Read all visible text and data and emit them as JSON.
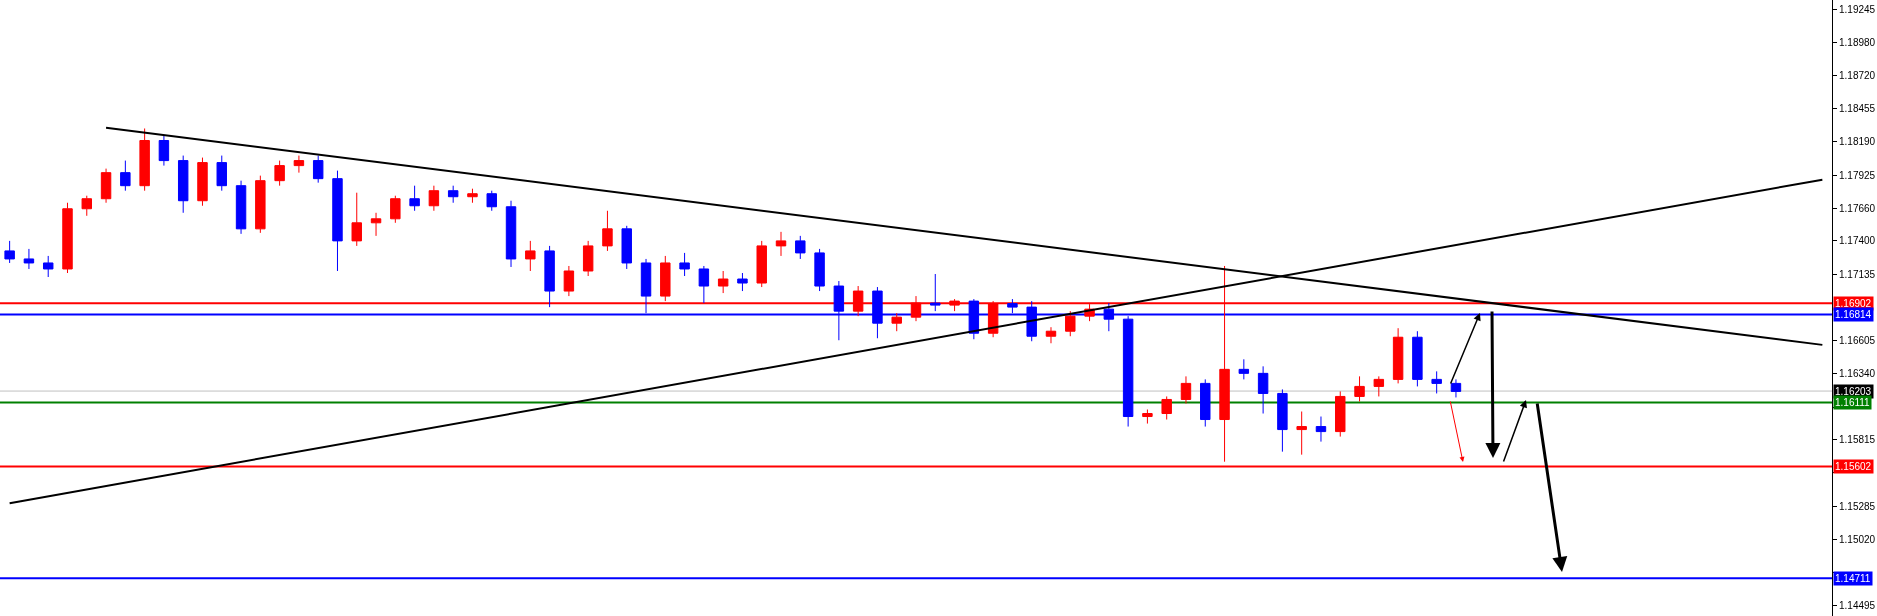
{
  "chart_data": {
    "type": "candlestick",
    "tick_labels": "y",
    "categories": [
      null,
      null,
      null,
      null,
      null,
      null,
      null,
      null,
      null,
      null,
      null,
      null,
      null,
      null,
      null,
      null,
      null,
      null,
      null,
      null,
      null,
      null,
      null,
      null,
      null,
      null,
      null,
      null,
      null,
      null,
      null,
      null,
      null,
      null,
      null,
      null,
      null,
      null,
      null,
      null,
      null,
      null,
      null,
      null,
      null,
      null,
      null,
      null,
      null,
      null,
      null,
      null,
      null,
      null,
      null,
      null,
      null,
      null,
      null,
      null,
      null,
      null,
      null,
      null,
      null,
      null,
      null,
      null,
      null,
      null,
      null,
      null,
      null,
      null,
      null,
      null,
      null,
      null,
      null,
      null,
      null,
      null,
      null,
      null,
      null,
      null,
      null,
      null,
      null,
      null,
      null,
      null,
      null,
      null,
      null
    ],
    "ohlc": [
      [
        1.1732,
        1.174,
        1.17224,
        1.17256
      ],
      [
        1.17256,
        1.17336,
        1.17176,
        1.17224
      ],
      [
        1.17224,
        1.1728,
        1.17112,
        1.17176
      ],
      [
        1.17176,
        1.17704,
        1.17144,
        1.17656
      ],
      [
        1.17656,
        1.1776,
        1.176,
        1.17736
      ],
      [
        1.17736,
        1.17976,
        1.17704,
        1.17944
      ],
      [
        1.17944,
        1.1804,
        1.178,
        1.1784
      ],
      [
        1.1784,
        1.18296,
        1.178,
        1.182
      ],
      [
        1.182,
        1.1824,
        1.18,
        1.1804
      ],
      [
        1.1804,
        1.1808,
        1.17624,
        1.1772
      ],
      [
        1.1772,
        1.18064,
        1.1768,
        1.18024
      ],
      [
        1.18024,
        1.1808,
        1.178,
        1.1784
      ],
      [
        1.1784,
        1.1788,
        1.17456,
        1.17496
      ],
      [
        1.17496,
        1.1792,
        1.17464,
        1.1788
      ],
      [
        1.1788,
        1.1804,
        1.1784,
        1.18
      ],
      [
        1.18,
        1.1808,
        1.17944,
        1.1804
      ],
      [
        1.1804,
        1.1808,
        1.17864,
        1.17896
      ],
      [
        1.17896,
        1.1796,
        1.1716,
        1.174
      ],
      [
        1.174,
        1.17784,
        1.1736,
        1.17544
      ],
      [
        1.17544,
        1.17624,
        1.1744,
        1.17576
      ],
      [
        1.17576,
        1.1776,
        1.17544,
        1.17736
      ],
      [
        1.17736,
        1.1784,
        1.1764,
        1.1768
      ],
      [
        1.1768,
        1.1784,
        1.1764,
        1.178
      ],
      [
        1.178,
        1.1784,
        1.17704,
        1.17752
      ],
      [
        1.17752,
        1.17816,
        1.17704,
        1.17776
      ],
      [
        1.17776,
        1.178,
        1.1764,
        1.17672
      ],
      [
        1.17672,
        1.1772,
        1.17192,
        1.17256
      ],
      [
        1.17256,
        1.174,
        1.1716,
        1.1732
      ],
      [
        1.1732,
        1.1736,
        1.16872,
        1.17
      ],
      [
        1.17,
        1.172,
        1.1696,
        1.1716
      ],
      [
        1.1716,
        1.174,
        1.1712,
        1.1736
      ],
      [
        1.1736,
        1.1764,
        1.1732,
        1.17496
      ],
      [
        1.17496,
        1.1752,
        1.17176,
        1.17224
      ],
      [
        1.17224,
        1.17256,
        1.16824,
        1.1696
      ],
      [
        1.1696,
        1.1728,
        1.1692,
        1.17224
      ],
      [
        1.17224,
        1.17304,
        1.1712,
        1.17176
      ],
      [
        1.17176,
        1.172,
        1.16904,
        1.1704
      ],
      [
        1.1704,
        1.1716,
        1.16984,
        1.17096
      ],
      [
        1.17096,
        1.17144,
        1.17,
        1.17064
      ],
      [
        1.17064,
        1.174,
        1.17032,
        1.1736
      ],
      [
        1.1736,
        1.17472,
        1.1728,
        1.174
      ],
      [
        1.174,
        1.1744,
        1.17256,
        1.17304
      ],
      [
        1.17304,
        1.17336,
        1.17,
        1.1704
      ],
      [
        1.1704,
        1.1708,
        1.16608,
        1.1684
      ],
      [
        1.1684,
        1.1704,
        1.168,
        1.17
      ],
      [
        1.17,
        1.17032,
        1.16624,
        1.16744
      ],
      [
        1.16744,
        1.16824,
        1.1668,
        1.16792
      ],
      [
        1.16792,
        1.1696,
        1.1676,
        1.16904
      ],
      [
        1.16904,
        1.17136,
        1.1684,
        1.16888
      ],
      [
        1.16888,
        1.16936,
        1.1684,
        1.1692
      ],
      [
        1.1692,
        1.16936,
        1.16616,
        1.16664
      ],
      [
        1.16664,
        1.1692,
        1.16632,
        1.169
      ],
      [
        1.169,
        1.16936,
        1.16824,
        1.16872
      ],
      [
        1.16872,
        1.1692,
        1.166,
        1.1664
      ],
      [
        1.1664,
        1.16712,
        1.16584,
        1.1668
      ],
      [
        1.1668,
        1.1684,
        1.1664,
        1.168
      ],
      [
        1.168,
        1.16896,
        1.1676,
        1.16856
      ],
      [
        1.16856,
        1.16904,
        1.1668,
        1.16776
      ],
      [
        1.16776,
        1.168,
        1.1592,
        1.16
      ],
      [
        1.16,
        1.16056,
        1.15944,
        1.16024
      ],
      [
        1.16024,
        1.1616,
        1.15976,
        1.16136
      ],
      [
        1.16136,
        1.1632,
        1.16104,
        1.16264
      ],
      [
        1.16264,
        1.16296,
        1.1592,
        1.15976
      ],
      [
        1.15976,
        1.172,
        1.1564,
        1.16376
      ],
      [
        1.16376,
        1.16456,
        1.16296,
        1.16344
      ],
      [
        1.16344,
        1.164,
        1.16024,
        1.16184
      ],
      [
        1.16184,
        1.16216,
        1.1572,
        1.15896
      ],
      [
        1.15896,
        1.1604,
        1.15696,
        1.1592
      ],
      [
        1.1592,
        1.16,
        1.158,
        1.1588
      ],
      [
        1.1588,
        1.162,
        1.1584,
        1.1616
      ],
      [
        1.1616,
        1.1632,
        1.1612,
        1.1624
      ],
      [
        1.1624,
        1.1632,
        1.1616,
        1.16296
      ],
      [
        1.16296,
        1.16704,
        1.16264,
        1.16632
      ],
      [
        1.16632,
        1.1668,
        1.1624,
        1.16296
      ],
      [
        1.16296,
        1.1636,
        1.16184,
        1.16264
      ],
      [
        1.16264,
        1.16296,
        1.16152,
        1.162
      ],
      null,
      null,
      null,
      null,
      null,
      null,
      null,
      null,
      null,
      null,
      null,
      null,
      null,
      null,
      null,
      null,
      null,
      null,
      null
    ],
    "colors": [
      "#0000ff",
      "#0000ff",
      "#0000ff",
      "#ff0000",
      "#ff0000",
      "#ff0000",
      "#0000ff",
      "#ff0000",
      "#0000ff",
      "#0000ff",
      "#ff0000",
      "#0000ff",
      "#0000ff",
      "#ff0000",
      "#ff0000",
      "#ff0000",
      "#0000ff",
      "#0000ff",
      "#ff0000",
      "#ff0000",
      "#ff0000",
      "#0000ff",
      "#ff0000",
      "#0000ff",
      "#ff0000",
      "#0000ff",
      "#0000ff",
      "#ff0000",
      "#0000ff",
      "#ff0000",
      "#ff0000",
      "#ff0000",
      "#0000ff",
      "#0000ff",
      "#ff0000",
      "#0000ff",
      "#0000ff",
      "#ff0000",
      "#0000ff",
      "#ff0000",
      "#ff0000",
      "#0000ff",
      "#0000ff",
      "#0000ff",
      "#ff0000",
      "#0000ff",
      "#ff0000",
      "#ff0000",
      "#0000ff",
      "#ff0000",
      "#0000ff",
      "#ff0000",
      "#0000ff",
      "#0000ff",
      "#ff0000",
      "#ff0000",
      "#ff0000",
      "#0000ff",
      "#0000ff",
      "#ff0000",
      "#ff0000",
      "#ff0000",
      "#0000ff",
      "#ff0000",
      "#0000ff",
      "#0000ff",
      "#0000ff",
      "#ff0000",
      "#0000ff",
      "#ff0000",
      "#ff0000",
      "#ff0000",
      "#ff0000",
      "#0000ff",
      "#0000ff",
      "#0000ff",
      null,
      null,
      null,
      null,
      null,
      null,
      null,
      null,
      null,
      null,
      null,
      null,
      null,
      null,
      null,
      null,
      null,
      null,
      null
    ],
    "series": [
      {
        "type": "line",
        "values": [
          null,
          null,
          null,
          null,
          null,
          1.18302,
          null,
          null,
          null,
          null,
          null,
          null,
          null,
          null,
          null,
          null,
          null,
          null,
          null,
          null,
          null,
          null,
          null,
          null,
          null,
          null,
          null,
          null,
          null,
          null,
          null,
          null,
          null,
          null,
          null,
          null,
          null,
          null,
          null,
          null,
          null,
          null,
          null,
          null,
          null,
          null,
          null,
          null,
          null,
          null,
          null,
          null,
          null,
          null,
          null,
          null,
          null,
          null,
          null,
          null,
          null,
          null,
          null,
          null,
          null,
          null,
          null,
          null,
          null,
          null,
          null,
          null,
          null,
          null,
          null,
          null,
          null,
          null,
          null,
          null,
          null,
          null,
          null,
          null,
          null,
          null,
          null,
          null,
          null,
          null,
          null,
          null,
          null,
          null,
          1.16571
        ],
        "color": "#000000"
      },
      {
        "type": "line",
        "values": [
          1.15309,
          null,
          null,
          null,
          null,
          null,
          null,
          null,
          null,
          null,
          null,
          null,
          null,
          null,
          null,
          null,
          null,
          null,
          null,
          null,
          null,
          null,
          null,
          null,
          null,
          null,
          null,
          null,
          null,
          null,
          null,
          null,
          null,
          null,
          null,
          null,
          null,
          null,
          null,
          null,
          null,
          null,
          null,
          null,
          null,
          null,
          null,
          null,
          null,
          null,
          null,
          null,
          null,
          null,
          null,
          null,
          null,
          null,
          null,
          null,
          null,
          null,
          null,
          null,
          null,
          null,
          null,
          null,
          null,
          null,
          null,
          null,
          null,
          null,
          null,
          null,
          null,
          null,
          null,
          null,
          null,
          null,
          null,
          null,
          null,
          null,
          null,
          null,
          null,
          null,
          null,
          null,
          null,
          null,
          1.17888
        ],
        "color": "#000000"
      }
    ],
    "ylim": [
      1.1441,
      1.1932
    ],
    "yticks": [
      1.14495,
      {
        "value": 1.14755,
        "label": null
      },
      {
        "value": 1.1502,
        "label": "1.15020"
      },
      1.15285,
      {
        "value": 1.1555,
        "label": null
      },
      1.15815,
      {
        "value": 1.16075,
        "label": null
      },
      {
        "value": 1.1634,
        "label": "1.16340"
      },
      1.16605,
      1.17135,
      {
        "value": 1.174,
        "label": "1.17400"
      },
      {
        "value": 1.1766,
        "label": "1.17660"
      },
      1.17925,
      {
        "value": 1.1819,
        "label": "1.18190"
      },
      1.18455,
      {
        "value": 1.1872,
        "label": "1.18720"
      },
      {
        "value": 1.1898,
        "label": "1.18980"
      },
      1.19245
    ],
    "ref_lines": [
      {
        "axis": "y",
        "value": 1.16902,
        "label": "1.16902",
        "color": "#ff0000"
      },
      {
        "axis": "y",
        "value": 1.16814,
        "label": "1.16814",
        "color": "#0000ff"
      },
      {
        "axis": "y",
        "value": 1.16203,
        "label": "1.16203",
        "color": "#c0c0c0"
      },
      {
        "axis": "y",
        "value": 1.16111,
        "label": "1.16111",
        "color": "#008000"
      },
      {
        "axis": "y",
        "value": 1.15602,
        "label": "1.15602",
        "color": "#ff0000"
      },
      {
        "axis": "y",
        "value": 1.14711,
        "label": "1.14711",
        "color": "#0000ff"
      }
    ]
  }
}
